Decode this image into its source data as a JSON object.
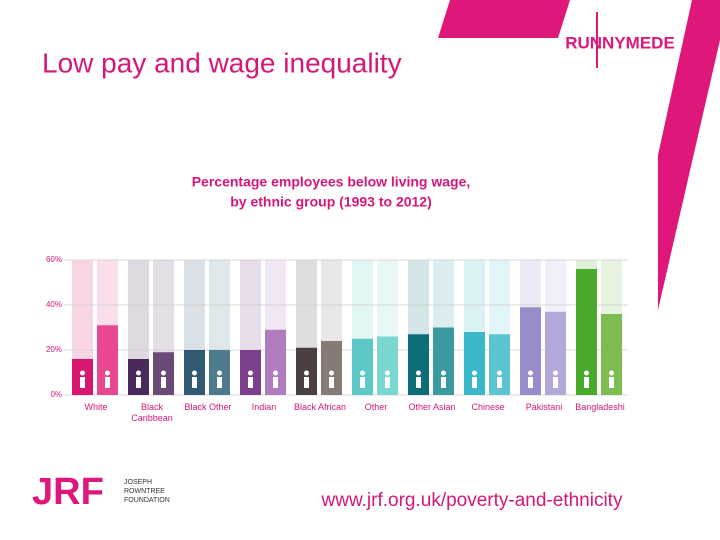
{
  "slide_title": "Low pay and wage inequality",
  "logos": {
    "runnymede": "RUNNYMEDE",
    "jrf": "JRF",
    "jrf_name": [
      "JOSEPH",
      "ROWNTREE",
      "FOUNDATION"
    ]
  },
  "url": "www.jrf.org.uk/poverty-and-ethnicity",
  "chart_data": {
    "type": "grouped_bar",
    "title": [
      "Percentage employees below living wage,",
      "by ethnic group (1993 to 2012)"
    ],
    "categories": [
      "White",
      "Black Caribbean",
      "Black Other",
      "Indian",
      "Black African",
      "Other",
      "Other Asian",
      "Chinese",
      "Pakistani",
      "Bangladeshi"
    ],
    "series": [
      {
        "values": [
          16,
          16,
          20,
          20,
          21,
          25,
          27,
          28,
          39,
          56
        ],
        "colors": [
          "#d6176f",
          "#4a2a5a",
          "#2f5a72",
          "#7b3f8c",
          "#4a4040",
          "#5cc8c8",
          "#0e6e78",
          "#3ab8c8",
          "#9a8ccc",
          "#4aa82a"
        ]
      },
      {
        "values": [
          31,
          19,
          20,
          29,
          24,
          26,
          30,
          27,
          37,
          36
        ],
        "colors": [
          "#e8488f",
          "#6b4a78",
          "#4e7b8c",
          "#b07cc0",
          "#857a74",
          "#7ad6d0",
          "#3a9aa0",
          "#5ac4d0",
          "#b4a8d8",
          "#7cbc50"
        ]
      }
    ],
    "ylim": [
      0,
      60
    ],
    "yticks": [
      {
        "value": 0,
        "label": "0%"
      },
      {
        "value": 20,
        "label": "20%"
      },
      {
        "value": 40,
        "label": "40%"
      },
      {
        "value": 60,
        "label": "60%"
      }
    ],
    "grid": true
  }
}
